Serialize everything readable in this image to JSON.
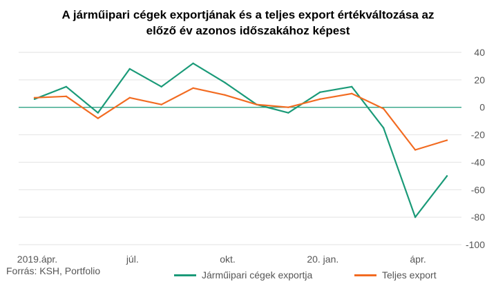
{
  "colors": {
    "series1": "#1a9a78",
    "series2": "#f26b21",
    "grid": "#e2e2e2",
    "zero": "#1a9a78"
  },
  "source": "Forrás: KSH, Portfolio",
  "chart_data": {
    "type": "line",
    "title_lines": [
      "A járműipari cégek exportjának és a teljes export értékváltozása az",
      "előző év azonos időszakához képest"
    ],
    "x": [
      "2019.04",
      "2019.05",
      "2019.06",
      "2019.07",
      "2019.08",
      "2019.09",
      "2019.10",
      "2019.11",
      "2019.12",
      "2020.01",
      "2020.02",
      "2020.03",
      "2020.04",
      "2020.05"
    ],
    "x_tick_labels": [
      {
        "index": 0,
        "label": "2019.ápr."
      },
      {
        "index": 3,
        "label": "júl."
      },
      {
        "index": 6,
        "label": "okt."
      },
      {
        "index": 9,
        "label": "20. jan."
      },
      {
        "index": 12,
        "label": "ápr."
      }
    ],
    "y_ticks": [
      40,
      20,
      0,
      -20,
      -40,
      -60,
      -80,
      -100
    ],
    "ylim": [
      -100,
      40
    ],
    "grid": true,
    "legend_position": "bottom",
    "series": [
      {
        "name": "Járműipari cégek exportja",
        "values": [
          6,
          15,
          -4,
          28,
          15,
          32,
          18,
          2,
          -4,
          11,
          15,
          -15,
          -80,
          -50
        ]
      },
      {
        "name": "Teljes export",
        "values": [
          7,
          8,
          -8,
          7,
          2,
          14,
          9,
          2,
          0,
          6,
          10,
          -1,
          -31,
          -24
        ]
      }
    ]
  }
}
